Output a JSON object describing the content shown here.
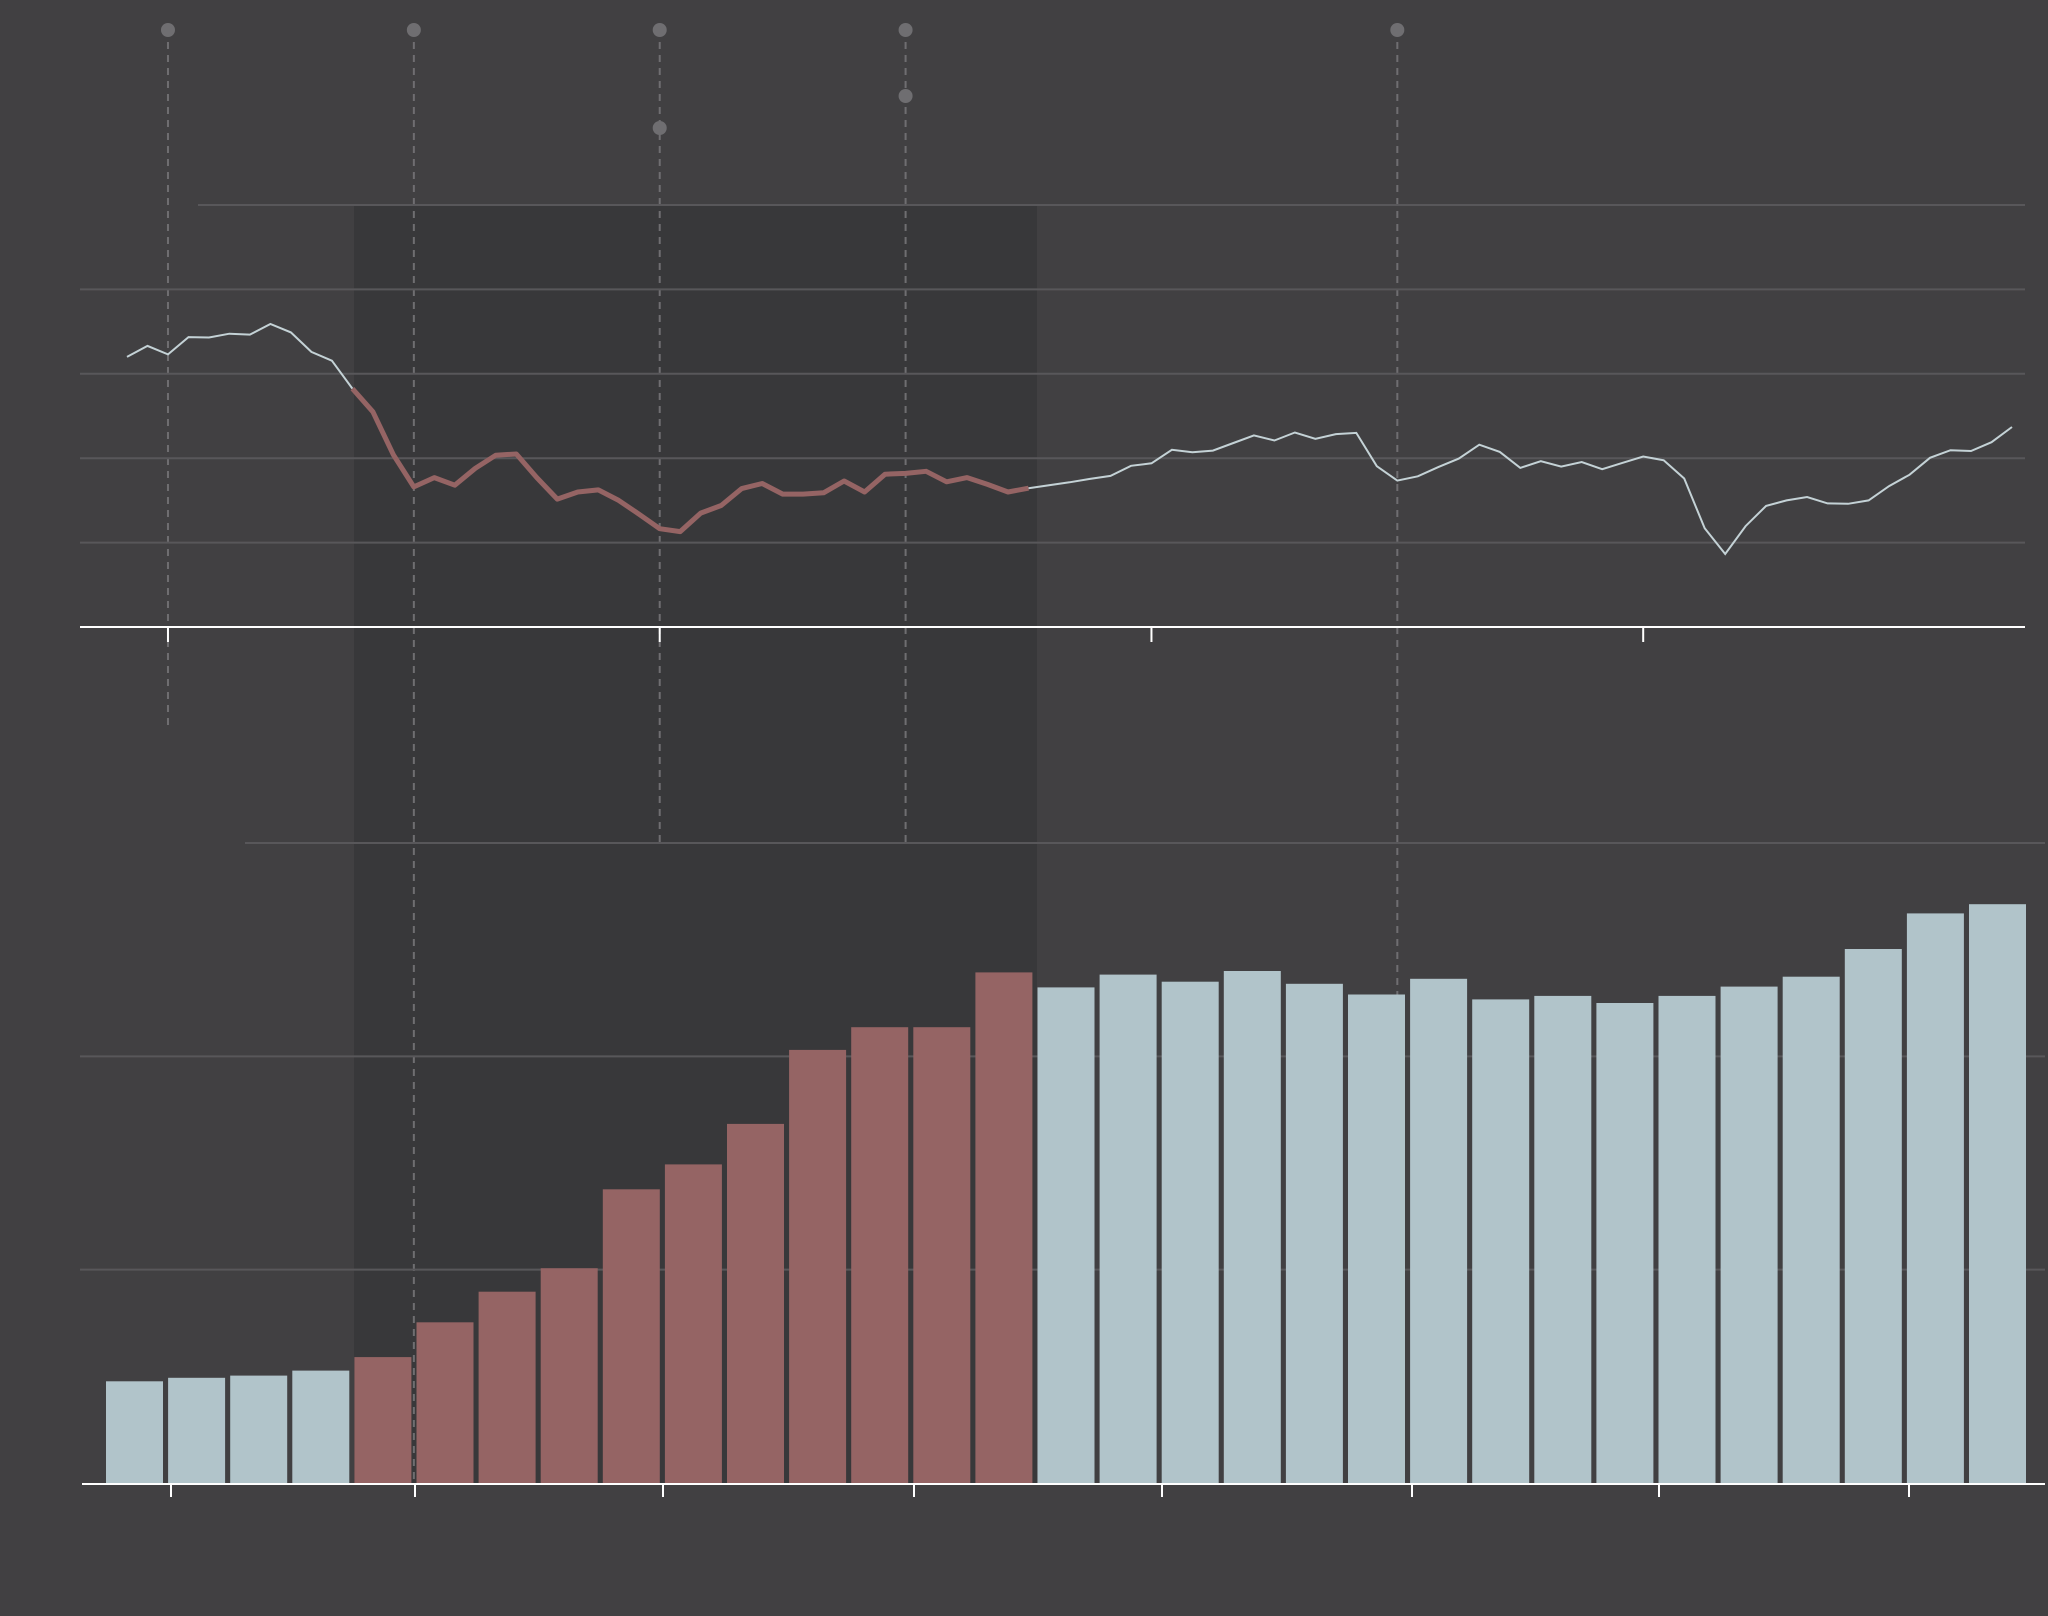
{
  "colors": {
    "background": "#414042",
    "shade": "#38383a",
    "grid": "#58575a",
    "axis": "#ffffff",
    "marker": "#6f6e71",
    "highlight": "#956464",
    "normal": "#b1c4ca",
    "line_normal": "#c4d2d6"
  },
  "chart_data": [
    {
      "type": "line",
      "title": "",
      "xlabel": "",
      "ylabel": "",
      "series": [
        {
          "values": [
            64.0,
            66.6,
            64.6,
            68.7,
            68.6,
            69.5,
            69.3,
            71.8,
            69.8,
            65.2,
            63.1,
            56.5,
            51.0,
            40.8,
            33.2,
            35.4,
            33.6,
            37.6,
            40.7,
            41.0,
            35.4,
            30.3,
            32.0,
            32.5,
            30.0,
            26.7,
            23.3,
            22.6,
            27.0,
            28.8,
            32.8,
            34.0,
            31.5,
            31.5,
            31.8,
            34.6,
            32.0,
            36.2,
            36.4,
            36.9,
            34.4,
            35.4,
            33.8,
            32.0,
            32.9,
            33.6,
            34.3,
            35.1,
            35.8,
            38.2,
            38.8,
            42.0,
            41.4,
            41.8,
            43.6,
            45.4,
            44.2,
            46.1,
            44.6,
            45.7,
            46.0,
            38.1,
            34.7,
            35.7,
            37.9,
            39.9,
            43.2,
            41.5,
            37.7,
            39.3,
            38.0,
            39.1,
            37.4,
            38.9,
            40.4,
            39.5,
            35.2,
            23.4,
            17.3,
            23.9,
            28.7,
            30.0,
            30.8,
            29.3,
            29.2,
            30.0,
            33.4,
            36.1,
            40.1,
            41.9,
            41.7,
            43.8,
            47.4
          ]
        }
      ],
      "highlight_range": [
        11,
        44
      ],
      "event_markers": [
        {
          "at": 2,
          "dots": 1
        },
        {
          "at": 14,
          "dots": 1
        },
        {
          "at": 26,
          "dots": 2
        },
        {
          "at": 38,
          "dots": 2
        },
        {
          "at": 62,
          "dots": 1
        }
      ],
      "ylim": [
        0,
        100
      ],
      "grid": true
    },
    {
      "type": "bar",
      "title": "",
      "xlabel": "",
      "ylabel": "",
      "values": [
        14.3,
        14.8,
        15.1,
        15.8,
        17.7,
        22.6,
        26.9,
        30.2,
        41.3,
        44.8,
        50.5,
        60.9,
        64.1,
        64.1,
        71.8,
        69.7,
        71.5,
        70.5,
        72.0,
        70.2,
        68.7,
        70.9,
        68.0,
        68.5,
        67.5,
        68.5,
        69.8,
        71.2,
        75.1,
        80.1,
        81.4
      ],
      "highlight_range": [
        4,
        14
      ],
      "ylim": [
        0,
        90
      ],
      "grid": true
    }
  ]
}
